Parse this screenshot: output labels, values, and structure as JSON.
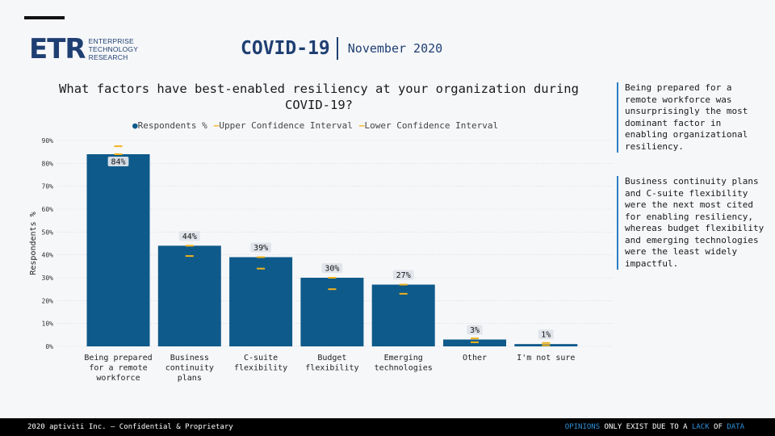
{
  "logo": {
    "mark": "ETR",
    "line1": "ENTERPRISE",
    "line2": "TECHNOLOGY",
    "line3": "RESEARCH"
  },
  "header": {
    "title": "COVID-19",
    "date": "November 2020"
  },
  "sidebar": {
    "note1": "Being prepared for a remote workforce was unsurprisingly the most dominant factor in enabling organizational resiliency.",
    "note2": "Business continuity plans and C-suite flexibility were the next most cited for enabling resiliency, whereas budget flexibility and emerging technologies were the least widely impactful."
  },
  "footer": {
    "left": "2020 aptiviti Inc. – Confidential & Proprietary",
    "right_parts": [
      {
        "text": "OPINIONS",
        "style": "blue"
      },
      {
        "text": " ONLY EXIST DUE TO A ",
        "style": "white"
      },
      {
        "text": "LACK",
        "style": "blue"
      },
      {
        "text": " OF ",
        "style": "white"
      },
      {
        "text": "DATA",
        "style": "blue"
      }
    ]
  },
  "colors": {
    "bar": "#0e5a8a",
    "ci": "#f2b21b",
    "brand": "#1f3f72"
  },
  "chart_data": {
    "type": "bar",
    "title": "What factors have best-enabled resiliency at your organization during COVID-19?",
    "legend": [
      "Respondents %",
      "Upper Confidence Interval",
      "Lower Confidence Interval"
    ],
    "ylabel": "Respondents %",
    "xlabel": "",
    "ylim": [
      0,
      90
    ],
    "yticks": [
      "0%",
      "10%",
      "20%",
      "30%",
      "40%",
      "50%",
      "60%",
      "70%",
      "80%",
      "90%"
    ],
    "categories": [
      [
        "Being prepared",
        "for a remote",
        "workforce"
      ],
      [
        "Business",
        "continuity",
        "plans"
      ],
      [
        "C-suite",
        "flexibility"
      ],
      [
        "Budget",
        "flexibility"
      ],
      [
        "Emerging",
        "technologies"
      ],
      [
        "Other"
      ],
      [
        "I'm not sure"
      ]
    ],
    "values": [
      84,
      44,
      39,
      30,
      27,
      3,
      1
    ],
    "data_labels": [
      "84%",
      "44%",
      "39%",
      "30%",
      "27%",
      "3%",
      "1%"
    ],
    "upper_ci": [
      87.5,
      44,
      39,
      30,
      27,
      3.5,
      1.5
    ],
    "lower_ci": [
      84,
      39.5,
      34,
      25,
      23,
      1.8,
      0.5
    ]
  }
}
